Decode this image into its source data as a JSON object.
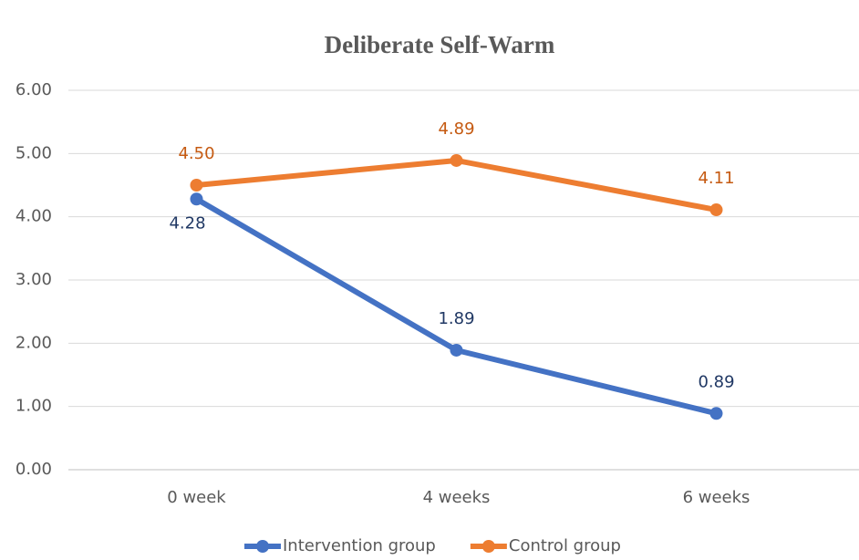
{
  "chart_data": {
    "type": "line",
    "title": "Deliberate Self-Warm",
    "categories": [
      "0 week",
      "4 weeks",
      "6 weeks"
    ],
    "series": [
      {
        "name": "Intervention group",
        "color": "#4472c4",
        "label_color": "#203864",
        "values": [
          4.28,
          1.89,
          0.89
        ],
        "value_labels": [
          "4.28",
          "1.89",
          "0.89"
        ]
      },
      {
        "name": "Control group",
        "color": "#ed7d31",
        "label_color": "#c55a11",
        "values": [
          4.5,
          4.89,
          4.11
        ],
        "value_labels": [
          "4.50",
          "4.89",
          "4.11"
        ]
      }
    ],
    "ylim": [
      0,
      6
    ],
    "yticks": [
      {
        "value": 0,
        "label": "0.00"
      },
      {
        "value": 1,
        "label": "1.00"
      },
      {
        "value": 2,
        "label": "2.00"
      },
      {
        "value": 3,
        "label": "3.00"
      },
      {
        "value": 4,
        "label": "4.00"
      },
      {
        "value": 5,
        "label": "5.00"
      },
      {
        "value": 6,
        "label": "6.00"
      }
    ],
    "grid": true,
    "legend": "bottom"
  }
}
